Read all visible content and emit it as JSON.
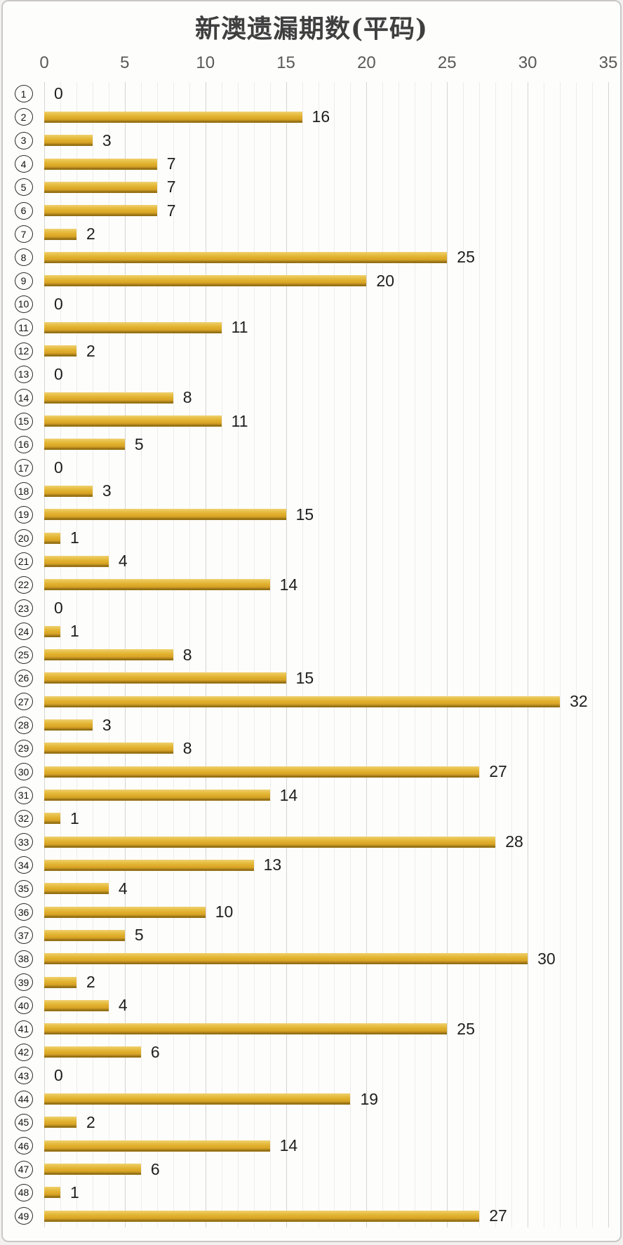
{
  "chart": {
    "title": "新澳遗漏期数(平码)"
  },
  "chart_data": {
    "type": "bar",
    "orientation": "horizontal",
    "title": "新澳遗漏期数(平码)",
    "categories": [
      1,
      2,
      3,
      4,
      5,
      6,
      7,
      8,
      9,
      10,
      11,
      12,
      13,
      14,
      15,
      16,
      17,
      18,
      19,
      20,
      21,
      22,
      23,
      24,
      25,
      26,
      27,
      28,
      29,
      30,
      31,
      32,
      33,
      34,
      35,
      36,
      37,
      38,
      39,
      40,
      41,
      42,
      43,
      44,
      45,
      46,
      47,
      48,
      49
    ],
    "category_style": "circled-number",
    "values": [
      0,
      16,
      3,
      7,
      7,
      7,
      2,
      25,
      20,
      0,
      11,
      2,
      0,
      8,
      11,
      5,
      0,
      3,
      15,
      1,
      4,
      14,
      0,
      1,
      8,
      15,
      32,
      3,
      8,
      27,
      14,
      1,
      28,
      13,
      4,
      10,
      5,
      30,
      2,
      4,
      25,
      6,
      0,
      19,
      2,
      14,
      6,
      1,
      27
    ],
    "xlabel": "",
    "ylabel": "",
    "xlim": [
      0,
      35
    ],
    "xticks": [
      0,
      5,
      10,
      15,
      20,
      25,
      30,
      35
    ],
    "grid": {
      "minor_every": 1,
      "major_every": 5,
      "axis_position": "top"
    },
    "legend": "none",
    "data_labels": "outside-end",
    "colors": {
      "bar_main": "#e0af2b",
      "bar_highlight": "#f0d173",
      "bar_shadow": "#8b6a11",
      "grid_minor": "#edeceb",
      "grid_major": "#d5d4d2",
      "axis_label": "#595959",
      "value_label": "#1e1e1e",
      "title": "#3f3f3f",
      "frame_border": "#c9c8c6",
      "background": "#fdfdfc"
    }
  }
}
